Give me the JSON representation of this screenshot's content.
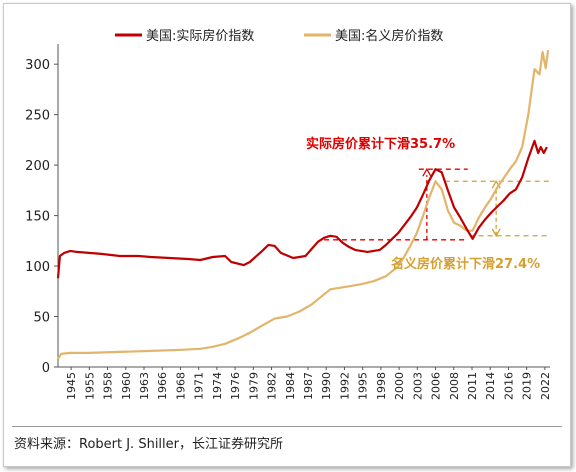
{
  "source": "资料来源：Robert J. Shiller，长江证券研究所",
  "chart_data": {
    "type": "line",
    "title": "",
    "xlabel": "",
    "ylabel": "",
    "ylim": [
      0,
      320
    ],
    "xlim": [
      1945,
      2024.5
    ],
    "yticks": [
      0,
      50,
      100,
      150,
      200,
      250,
      300
    ],
    "xticks": [
      "1945",
      "1955",
      "1958",
      "1960",
      "1963",
      "1966",
      "1968",
      "1971",
      "1974",
      "1976",
      "1979",
      "1982",
      "1984",
      "1987",
      "1990",
      "1992",
      "1995",
      "1998",
      "2000",
      "2003",
      "2006",
      "2008",
      "2011",
      "2014",
      "2016",
      "2019",
      "2022"
    ],
    "legend_position": "top",
    "grid": false,
    "series": [
      {
        "name": "美国:实际房价指数",
        "color": "#c00000",
        "points": [
          [
            1945,
            88
          ],
          [
            1945.3,
            110
          ],
          [
            1946,
            113
          ],
          [
            1947,
            115
          ],
          [
            1948,
            114
          ],
          [
            1950,
            113
          ],
          [
            1952,
            112
          ],
          [
            1955,
            110
          ],
          [
            1958,
            110
          ],
          [
            1960,
            109
          ],
          [
            1963,
            108
          ],
          [
            1966,
            107
          ],
          [
            1968,
            106
          ],
          [
            1970,
            109
          ],
          [
            1972,
            110
          ],
          [
            1973,
            104
          ],
          [
            1975,
            101
          ],
          [
            1976,
            104
          ],
          [
            1978,
            115
          ],
          [
            1979,
            121
          ],
          [
            1980,
            120
          ],
          [
            1981,
            113
          ],
          [
            1983,
            108
          ],
          [
            1985,
            110
          ],
          [
            1986,
            117
          ],
          [
            1987,
            124
          ],
          [
            1988,
            128
          ],
          [
            1989,
            130
          ],
          [
            1990,
            129
          ],
          [
            1991,
            123
          ],
          [
            1992,
            119
          ],
          [
            1993,
            116
          ],
          [
            1994,
            115
          ],
          [
            1995,
            114
          ],
          [
            1996,
            115
          ],
          [
            1997,
            116
          ],
          [
            1998,
            121
          ],
          [
            1999,
            127
          ],
          [
            2000,
            133
          ],
          [
            2001,
            141
          ],
          [
            2002,
            149
          ],
          [
            2003,
            158
          ],
          [
            2004,
            171
          ],
          [
            2005,
            185
          ],
          [
            2006,
            196
          ],
          [
            2007,
            193
          ],
          [
            2008,
            175
          ],
          [
            2009,
            158
          ],
          [
            2010,
            148
          ],
          [
            2011,
            137
          ],
          [
            2012,
            127
          ],
          [
            2013,
            138
          ],
          [
            2014,
            146
          ],
          [
            2015,
            153
          ],
          [
            2016,
            159
          ],
          [
            2017,
            165
          ],
          [
            2018,
            172
          ],
          [
            2019,
            176
          ],
          [
            2020,
            188
          ],
          [
            2021,
            207
          ],
          [
            2022,
            224
          ],
          [
            2022.6,
            212
          ],
          [
            2023,
            218
          ],
          [
            2023.5,
            212
          ],
          [
            2024,
            218
          ]
        ]
      },
      {
        "name": "美国:名义房价指数",
        "color": "#e3b46b",
        "points": [
          [
            1945,
            8
          ],
          [
            1945.5,
            13
          ],
          [
            1947,
            14
          ],
          [
            1950,
            14
          ],
          [
            1955,
            15
          ],
          [
            1960,
            16
          ],
          [
            1965,
            17
          ],
          [
            1968,
            18
          ],
          [
            1970,
            20
          ],
          [
            1972,
            23
          ],
          [
            1974,
            28
          ],
          [
            1976,
            34
          ],
          [
            1978,
            41
          ],
          [
            1980,
            48
          ],
          [
            1982,
            50
          ],
          [
            1984,
            55
          ],
          [
            1986,
            62
          ],
          [
            1988,
            72
          ],
          [
            1989,
            77
          ],
          [
            1990,
            78
          ],
          [
            1992,
            80
          ],
          [
            1994,
            82
          ],
          [
            1996,
            85
          ],
          [
            1998,
            90
          ],
          [
            2000,
            100
          ],
          [
            2001,
            110
          ],
          [
            2002,
            121
          ],
          [
            2003,
            133
          ],
          [
            2004,
            150
          ],
          [
            2005,
            168
          ],
          [
            2006,
            184
          ],
          [
            2007,
            176
          ],
          [
            2008,
            155
          ],
          [
            2009,
            143
          ],
          [
            2010,
            140
          ],
          [
            2011,
            135
          ],
          [
            2012,
            135
          ],
          [
            2013,
            148
          ],
          [
            2014,
            158
          ],
          [
            2015,
            167
          ],
          [
            2016,
            178
          ],
          [
            2017,
            187
          ],
          [
            2018,
            196
          ],
          [
            2019,
            204
          ],
          [
            2020,
            218
          ],
          [
            2021,
            250
          ],
          [
            2022,
            295
          ],
          [
            2022.8,
            290
          ],
          [
            2023.3,
            312
          ],
          [
            2023.8,
            296
          ],
          [
            2024.2,
            314
          ]
        ]
      }
    ],
    "annotations": [
      {
        "text": "实际房价累计下滑35.7%",
        "color": "#e00000"
      },
      {
        "text": "名义房价累计下滑27.4%",
        "color": "#d4a030"
      }
    ]
  }
}
